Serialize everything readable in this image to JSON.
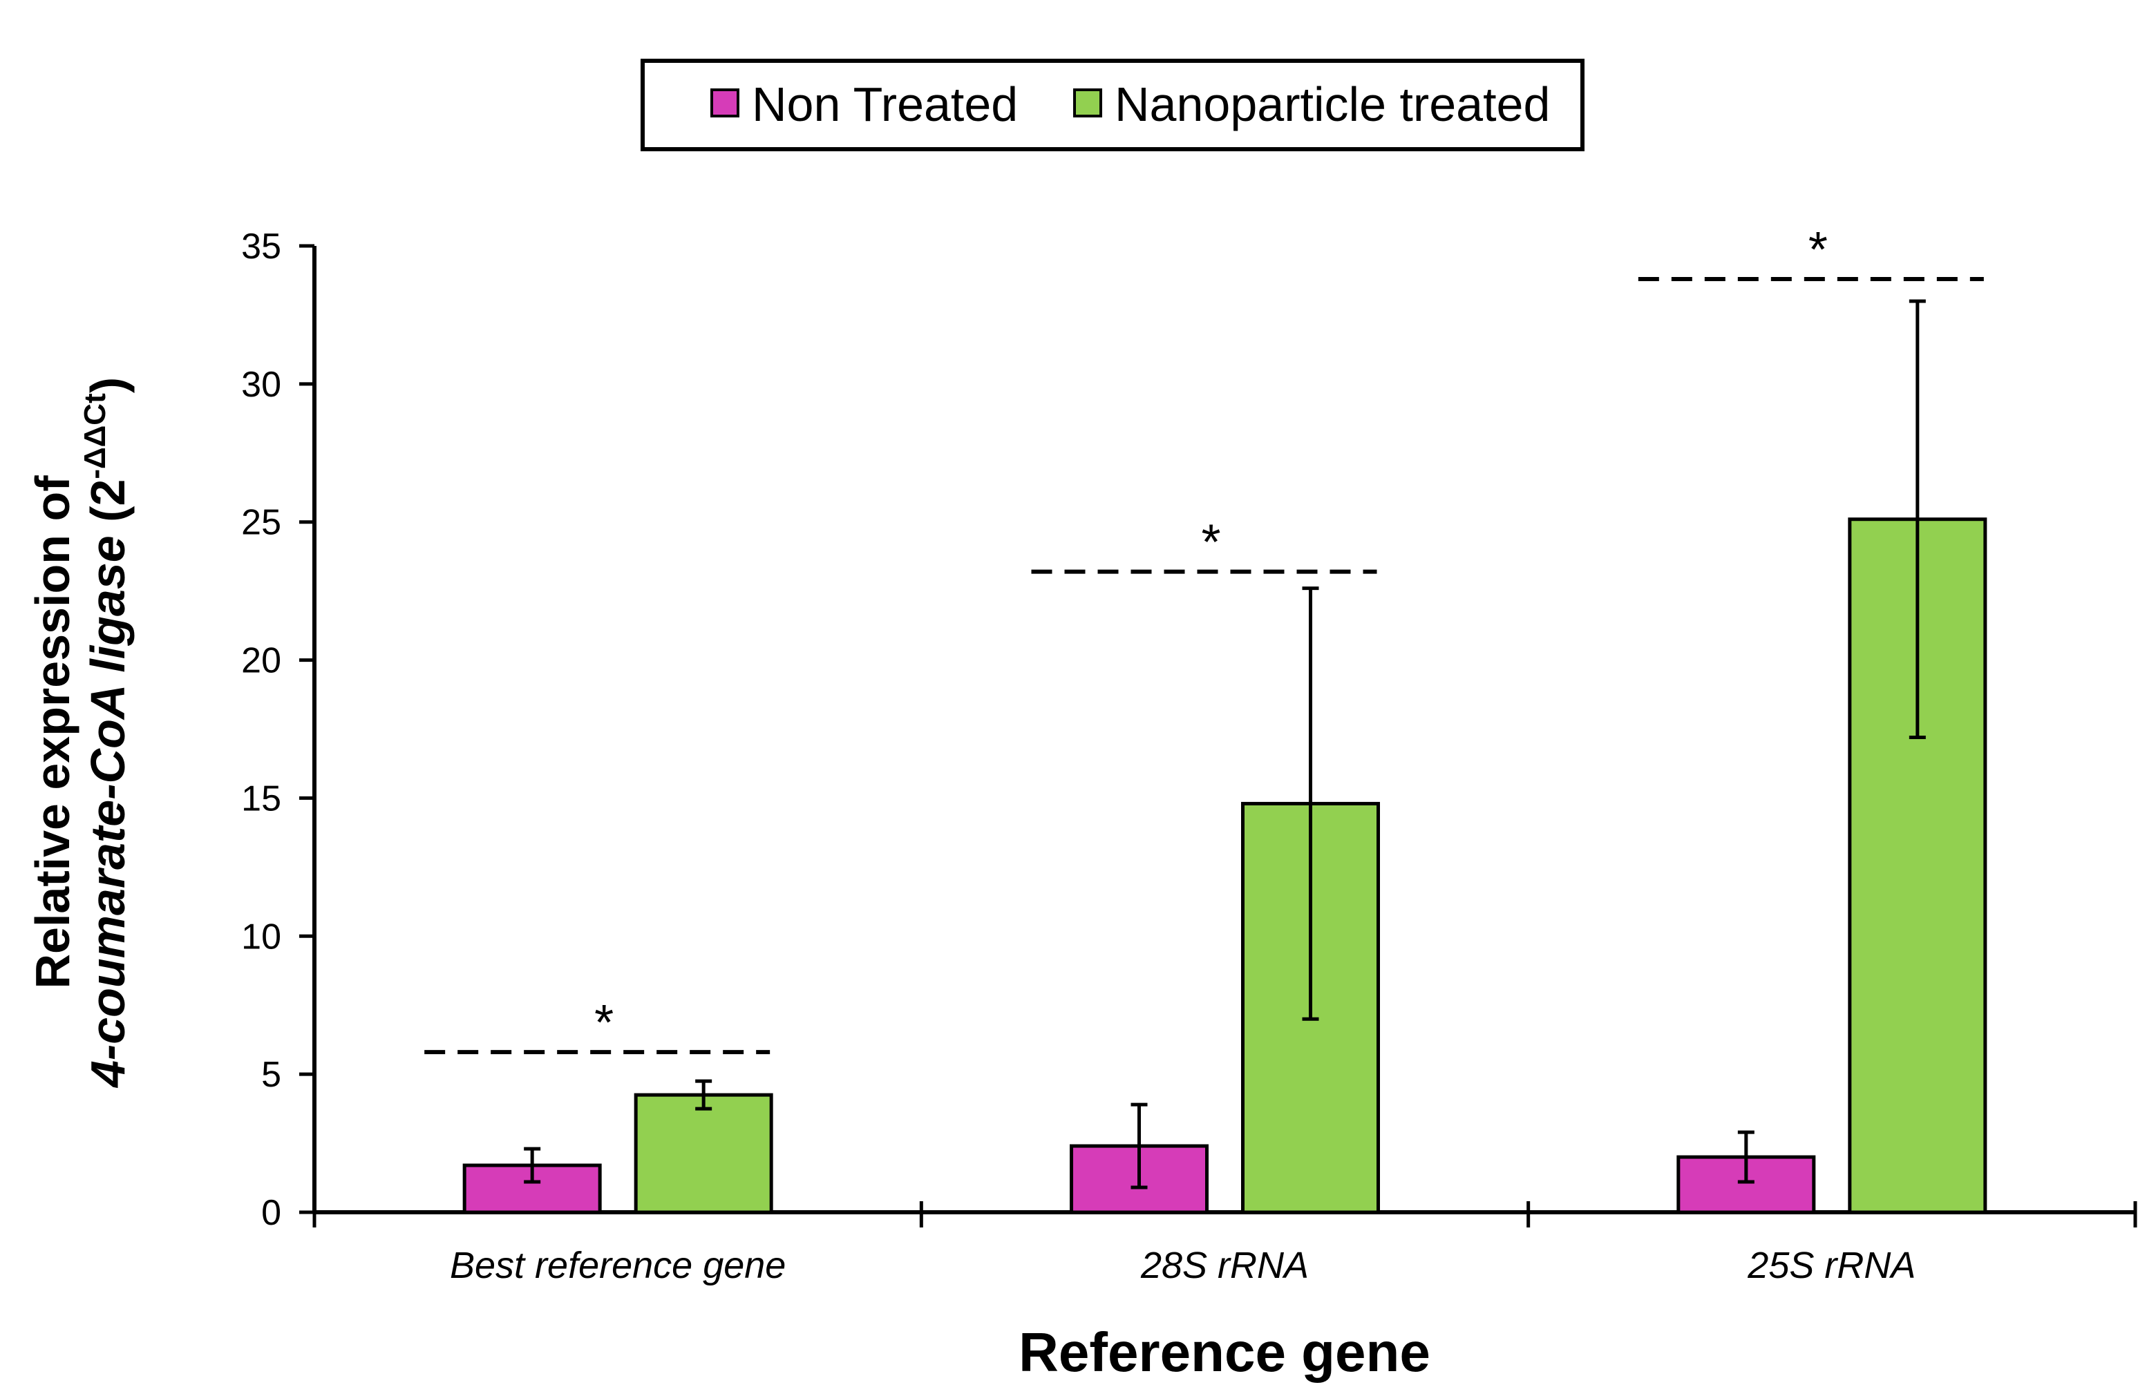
{
  "chart_data": {
    "type": "bar",
    "categories": [
      "Best reference gene",
      "28S rRNA",
      "25S rRNA"
    ],
    "series": [
      {
        "name": "Non Treated",
        "color": "#d63cb8",
        "values": [
          1.7,
          2.4,
          2.0
        ],
        "errors": [
          0.6,
          1.5,
          0.9
        ]
      },
      {
        "name": "Nanoparticle treated",
        "color": "#92d050",
        "values": [
          4.25,
          14.8,
          25.1
        ],
        "errors": [
          0.5,
          7.8,
          7.9
        ]
      }
    ],
    "significance": [
      {
        "category": "Best reference gene",
        "label": "*",
        "level": 5.8
      },
      {
        "category": "28S rRNA",
        "label": "*",
        "level": 23.2
      },
      {
        "category": "25S rRNA",
        "label": "*",
        "level": 33.8
      }
    ],
    "ylim": [
      0,
      35
    ],
    "yticks": [
      "0",
      "5",
      "10",
      "15",
      "20",
      "25",
      "30",
      "35"
    ],
    "xlabel": "Reference gene",
    "ylabel": {
      "line1": "Relative expression of",
      "gene": "4-coumarate-CoA ligase",
      "unit_open": "(2",
      "unit_sup": "-ΔΔCt",
      "unit_close": ")"
    },
    "legend": {
      "position": "top-center",
      "items": [
        "Non Treated",
        "Nanoparticle treated"
      ]
    }
  }
}
